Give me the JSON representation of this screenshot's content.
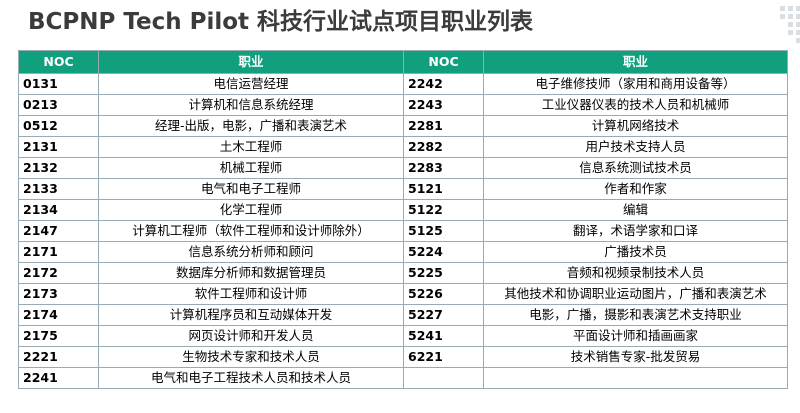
{
  "title": "BCPNP Tech Pilot 科技行业试点项目职业列表",
  "colors": {
    "header_bg": "#11a07e",
    "header_text": "#ffffff",
    "title": "#3b3b3b",
    "grid": "#9aaab2"
  },
  "table": {
    "headers": [
      "NOC",
      "职业",
      "NOC",
      "职业"
    ],
    "rows": [
      {
        "noc1": "0131",
        "job1": "电信运营经理",
        "noc2": "2242",
        "job2": "电子维修技师（家用和商用设备等）"
      },
      {
        "noc1": "0213",
        "job1": "计算机和信息系统经理",
        "noc2": "2243",
        "job2": "工业仪器仪表的技术人员和机械师"
      },
      {
        "noc1": "0512",
        "job1": "经理-出版，电影，广播和表演艺术",
        "noc2": "2281",
        "job2": "计算机网络技术"
      },
      {
        "noc1": "2131",
        "job1": "土木工程师",
        "noc2": "2282",
        "job2": "用户技术支持人员"
      },
      {
        "noc1": "2132",
        "job1": "机械工程师",
        "noc2": "2283",
        "job2": "信息系统测试技术员"
      },
      {
        "noc1": "2133",
        "job1": "电气和电子工程师",
        "noc2": "5121",
        "job2": "作者和作家"
      },
      {
        "noc1": "2134",
        "job1": "化学工程师",
        "noc2": "5122",
        "job2": "编辑"
      },
      {
        "noc1": "2147",
        "job1": "计算机工程师（软件工程师和设计师除外）",
        "noc2": "5125",
        "job2": "翻译，术语学家和口译"
      },
      {
        "noc1": "2171",
        "job1": "信息系统分析师和顾问",
        "noc2": "5224",
        "job2": "广播技术员"
      },
      {
        "noc1": "2172",
        "job1": "数据库分析师和数据管理员",
        "noc2": "5225",
        "job2": "音频和视频录制技术人员"
      },
      {
        "noc1": "2173",
        "job1": "软件工程师和设计师",
        "noc2": "5226",
        "job2": "其他技术和协调职业运动图片，广播和表演艺术"
      },
      {
        "noc1": "2174",
        "job1": "计算机程序员和互动媒体开发",
        "noc2": "5227",
        "job2": "电影，广播，摄影和表演艺术支持职业"
      },
      {
        "noc1": "2175",
        "job1": "网页设计师和开发人员",
        "noc2": "5241",
        "job2": "平面设计师和插画画家"
      },
      {
        "noc1": "2221",
        "job1": "生物技术专家和技术人员",
        "noc2": "6221",
        "job2": "技术销售专家-批发贸易"
      },
      {
        "noc1": "2241",
        "job1": "电气和电子工程技术人员和技术人员",
        "noc2": "",
        "job2": ""
      }
    ]
  }
}
